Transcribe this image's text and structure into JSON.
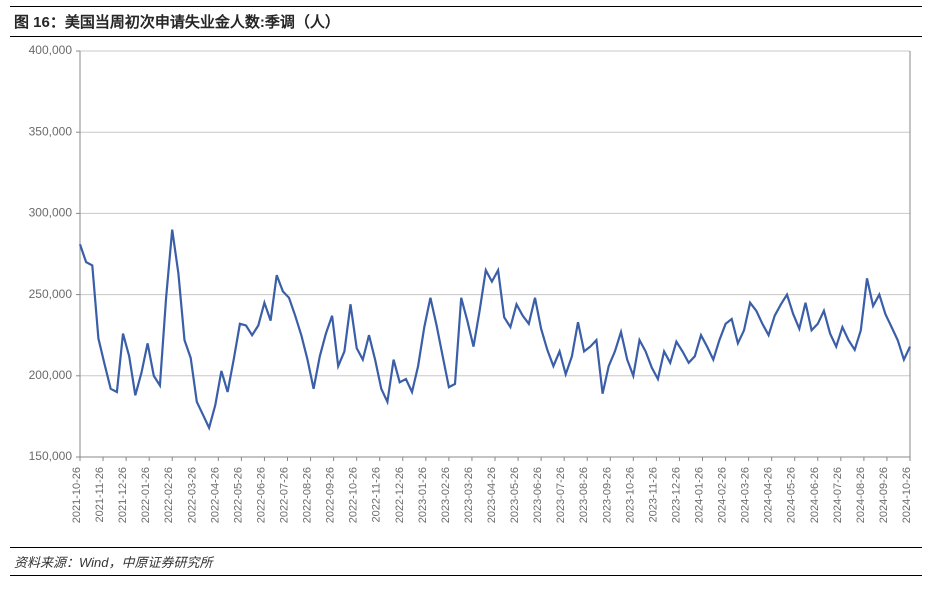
{
  "title": "图 16：美国当周初次申请失业金人数:季调（人）",
  "source": "资料来源：Wind，中原证券研究所",
  "chart": {
    "type": "line",
    "background_color": "#ffffff",
    "grid_color": "#c8c8c8",
    "axis_color": "#888888",
    "tick_label_color": "#6b6b6b",
    "tick_label_fontsize": 12,
    "line_color": "#3a5ea8",
    "line_width": 2.2,
    "ylim": [
      150000,
      400000
    ],
    "ytick_step": 50000,
    "ytick_labels": [
      "150,000",
      "200,000",
      "250,000",
      "300,000",
      "350,000",
      "400,000"
    ],
    "x_labels": [
      "2021-10-26",
      "2021-11-26",
      "2021-12-26",
      "2022-01-26",
      "2022-02-26",
      "2022-03-26",
      "2022-04-26",
      "2022-05-26",
      "2022-06-26",
      "2022-07-26",
      "2022-08-26",
      "2022-09-26",
      "2022-10-26",
      "2022-11-26",
      "2022-12-26",
      "2023-01-26",
      "2023-02-26",
      "2023-03-26",
      "2023-04-26",
      "2023-05-26",
      "2023-06-26",
      "2023-07-26",
      "2023-08-26",
      "2023-09-26",
      "2023-10-26",
      "2023-11-26",
      "2023-12-26",
      "2024-01-26",
      "2024-02-26",
      "2024-03-26",
      "2024-04-26",
      "2024-05-26",
      "2024-06-26",
      "2024-07-26",
      "2024-08-26",
      "2024-09-26",
      "2024-10-26"
    ],
    "values": [
      281000,
      270000,
      268000,
      223000,
      207000,
      192000,
      190000,
      226000,
      212000,
      188000,
      202000,
      220000,
      200000,
      194000,
      248000,
      290000,
      263000,
      222000,
      211000,
      184000,
      176000,
      168000,
      182000,
      203000,
      190000,
      210000,
      232000,
      231000,
      225000,
      231000,
      245000,
      234000,
      262000,
      252000,
      248000,
      237000,
      225000,
      210000,
      192000,
      212000,
      226000,
      237000,
      206000,
      215000,
      244000,
      217000,
      210000,
      225000,
      210000,
      192000,
      184000,
      210000,
      196000,
      198000,
      190000,
      206000,
      230000,
      248000,
      231000,
      212000,
      193000,
      195000,
      248000,
      234000,
      218000,
      240000,
      265000,
      258000,
      265000,
      236000,
      230000,
      244000,
      237000,
      232000,
      248000,
      229000,
      216000,
      206000,
      215000,
      201000,
      212000,
      233000,
      215000,
      218000,
      222000,
      189000,
      206000,
      215000,
      227000,
      210000,
      200000,
      222000,
      215000,
      205000,
      198000,
      215000,
      208000,
      221000,
      215000,
      208000,
      212000,
      225000,
      218000,
      210000,
      222000,
      232000,
      235000,
      220000,
      228000,
      245000,
      240000,
      232000,
      225000,
      237000,
      244000,
      250000,
      238000,
      229000,
      245000,
      228000,
      232000,
      240000,
      226000,
      218000,
      230000,
      222000,
      216000,
      228000,
      260000,
      243000,
      250000,
      238000,
      230000,
      222000,
      210000,
      218000
    ]
  }
}
